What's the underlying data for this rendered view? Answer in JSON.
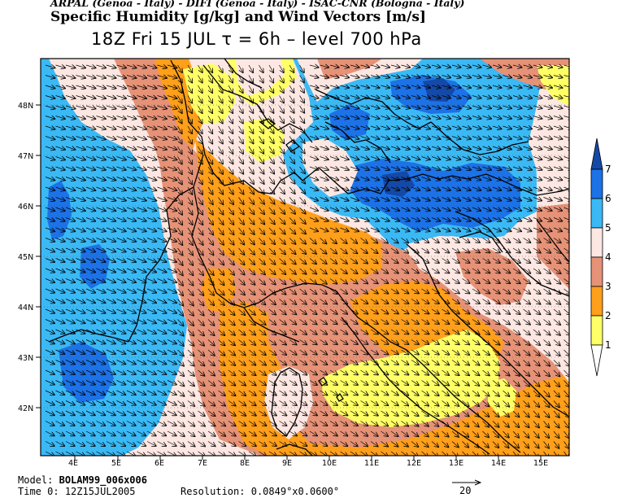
{
  "header": {
    "credits": "ARPAL (Genoa - Italy)  -  DIFI (Genoa - Italy)  -  ISAC-CNR (Bologna - Italy)",
    "title": "Specific Humidity [g/kg] and Wind Vectors [m/s]",
    "subtitle": "18Z Fri 15 JUL   τ = 6h   –   level 700 hPa"
  },
  "map": {
    "lat_labels": [
      "48N",
      "47N",
      "46N",
      "45N",
      "44N",
      "43N",
      "42N"
    ],
    "lon_labels": [
      "4E",
      "5E",
      "6E",
      "7E",
      "8E",
      "9E",
      "10E",
      "11E",
      "12E",
      "13E",
      "14E",
      "15E"
    ],
    "colors": {
      "1": "#ffff66",
      "2": "#ff9f1a",
      "3": "#e69277",
      "4": "#fde7e2",
      "5": "#3ab9f5",
      "6": "#1c72e6",
      "7": "#1449a8"
    }
  },
  "legend": {
    "labels": [
      "1",
      "2",
      "3",
      "4",
      "5",
      "6",
      "7"
    ],
    "colors": [
      "#ffff66",
      "#ff9f1a",
      "#e69277",
      "#fde7e2",
      "#3ab9f5",
      "#1c72e6",
      "#1449a8"
    ]
  },
  "footer": {
    "model_label": "Model:",
    "model_value": "BOLAM99_006x006",
    "time_label": "Time 0:",
    "time_value": "12Z15JUL2005",
    "resolution_label": "Resolution:",
    "resolution_value": "0.0849°x0.0600°",
    "vector_scale": "20"
  }
}
